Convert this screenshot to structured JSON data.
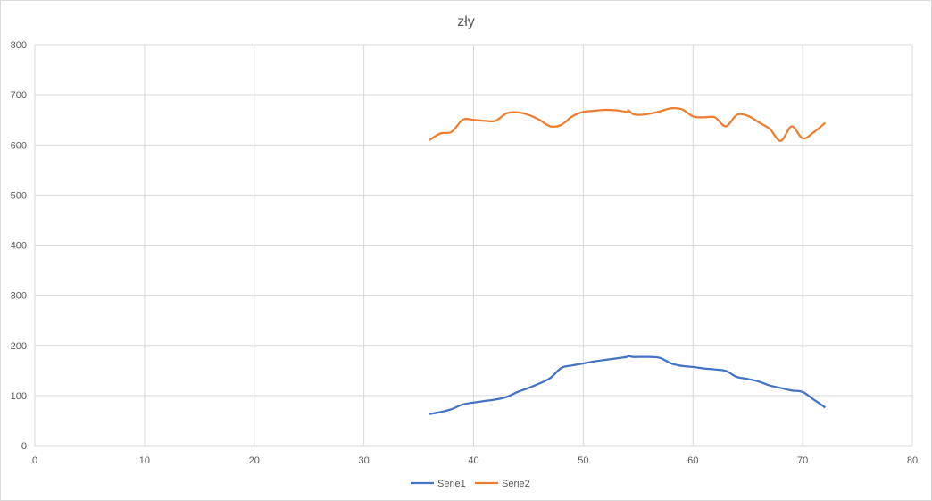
{
  "chart_data": {
    "type": "scatter",
    "title": "zły",
    "xlabel": "",
    "ylabel": "",
    "xlim": [
      0,
      80
    ],
    "ylim": [
      0,
      800
    ],
    "x_ticks": [
      "0",
      "10",
      "20",
      "30",
      "40",
      "50",
      "60",
      "70",
      "80"
    ],
    "y_ticks": [
      "0",
      "100",
      "200",
      "300",
      "400",
      "500",
      "600",
      "700",
      "800"
    ],
    "grid": true,
    "legend_position": "bottom",
    "smooth_lines": true,
    "series": [
      {
        "name": "Serie1",
        "color": "#4472C4",
        "points": [
          [
            36,
            63
          ],
          [
            37,
            67
          ],
          [
            38,
            73
          ],
          [
            39,
            82
          ],
          [
            40,
            86
          ],
          [
            41,
            89
          ],
          [
            42,
            92
          ],
          [
            43,
            97
          ],
          [
            44,
            107
          ],
          [
            45,
            115
          ],
          [
            46,
            124
          ],
          [
            47,
            135
          ],
          [
            48,
            155
          ],
          [
            49,
            160
          ],
          [
            50,
            164
          ],
          [
            51,
            168
          ],
          [
            52,
            171
          ],
          [
            53,
            174
          ],
          [
            54,
            177
          ],
          [
            54.1,
            179
          ],
          [
            54.5,
            177
          ],
          [
            55,
            177
          ],
          [
            56,
            177
          ],
          [
            57,
            175
          ],
          [
            58,
            164
          ],
          [
            59,
            159
          ],
          [
            60,
            157
          ],
          [
            61,
            154
          ],
          [
            62,
            152
          ],
          [
            63,
            149
          ],
          [
            64,
            137
          ],
          [
            65,
            133
          ],
          [
            66,
            128
          ],
          [
            67,
            120
          ],
          [
            68,
            115
          ],
          [
            69,
            110
          ],
          [
            70,
            107
          ],
          [
            71,
            92
          ],
          [
            72,
            77
          ]
        ]
      },
      {
        "name": "Serie2",
        "color": "#ED7D31",
        "points": [
          [
            36,
            610
          ],
          [
            37,
            623
          ],
          [
            38,
            626
          ],
          [
            39,
            650
          ],
          [
            40,
            650
          ],
          [
            41,
            648
          ],
          [
            42,
            648
          ],
          [
            43,
            663
          ],
          [
            44,
            665
          ],
          [
            45,
            660
          ],
          [
            46,
            650
          ],
          [
            47,
            637
          ],
          [
            48,
            640
          ],
          [
            49,
            657
          ],
          [
            50,
            666
          ],
          [
            51,
            668
          ],
          [
            52,
            670
          ],
          [
            53,
            669
          ],
          [
            54,
            666
          ],
          [
            54.1,
            669
          ],
          [
            54.5,
            662
          ],
          [
            55,
            660
          ],
          [
            56,
            662
          ],
          [
            57,
            667
          ],
          [
            58,
            673
          ],
          [
            59,
            671
          ],
          [
            60,
            657
          ],
          [
            61,
            655
          ],
          [
            62,
            655
          ],
          [
            63,
            637
          ],
          [
            64,
            660
          ],
          [
            65,
            658
          ],
          [
            66,
            645
          ],
          [
            67,
            632
          ],
          [
            68,
            608
          ],
          [
            69,
            637
          ],
          [
            70,
            613
          ],
          [
            71,
            625
          ],
          [
            72,
            643
          ]
        ]
      }
    ]
  }
}
